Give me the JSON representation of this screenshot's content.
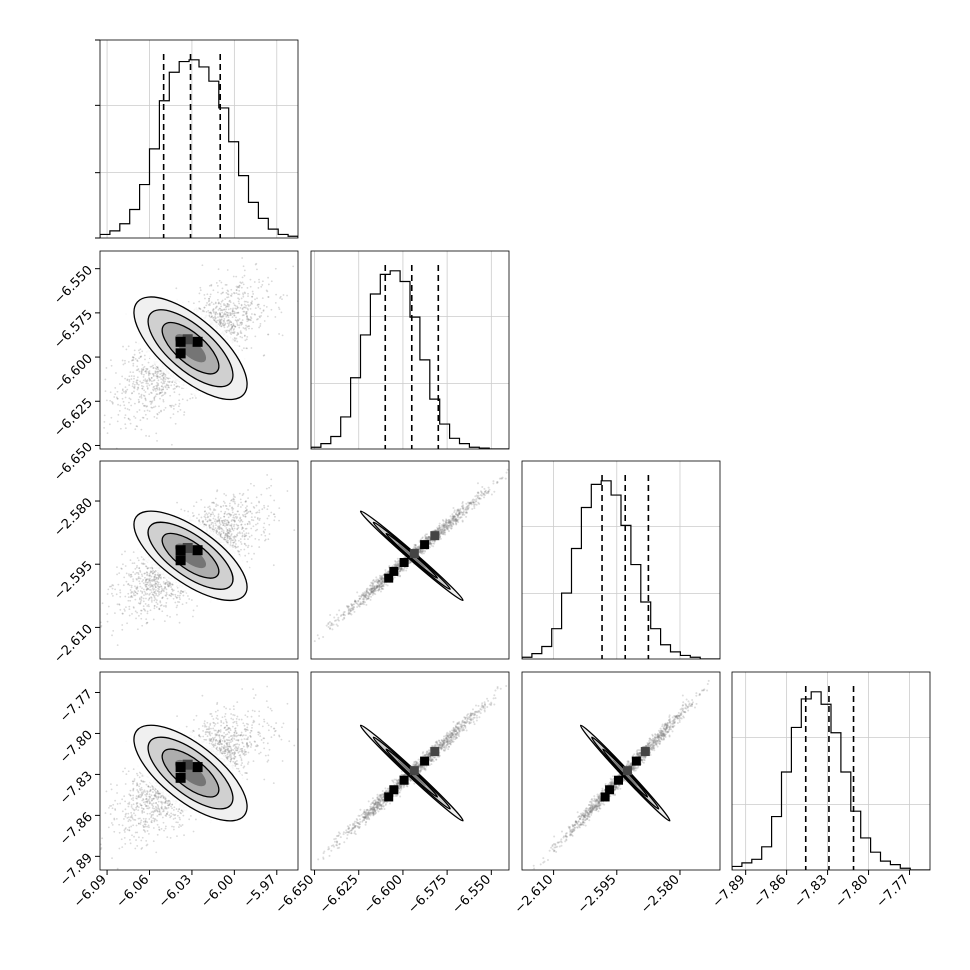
{
  "chart_data": {
    "type": "corner",
    "parameters": [
      {
        "ticks": [
          -6.09,
          -6.06,
          -6.03,
          -6.0,
          -5.97
        ],
        "tick_labels": [
          "−6.09",
          "−6.06",
          "−6.03",
          "−6.00",
          "−5.97"
        ],
        "range": [
          -6.095,
          -5.955
        ],
        "quantiles": [
          -6.05,
          -6.031,
          -6.01
        ],
        "mean": -6.031,
        "sd": 0.02
      },
      {
        "ticks": [
          -6.65,
          -6.625,
          -6.6,
          -6.575,
          -6.55
        ],
        "tick_labels": [
          "−6.650",
          "−6.625",
          "−6.600",
          "−6.575",
          "−6.550"
        ],
        "range": [
          -6.652,
          -6.54
        ],
        "quantiles": [
          -6.61,
          -6.595,
          -6.58
        ],
        "mean": -6.595,
        "sd": 0.0145
      },
      {
        "ticks": [
          -2.61,
          -2.595,
          -2.58
        ],
        "tick_labels": [
          "−2.610",
          "−2.595",
          "−2.580"
        ],
        "range": [
          -2.6175,
          -2.5705
        ],
        "quantiles": [
          -2.5985,
          -2.593,
          -2.5875
        ],
        "mean": -2.593,
        "sd": 0.0053
      },
      {
        "ticks": [
          -7.89,
          -7.86,
          -7.83,
          -7.8,
          -7.77
        ],
        "tick_labels": [
          "−7.89",
          "−7.86",
          "−7.83",
          "−7.80",
          "−7.77"
        ],
        "range": [
          -7.9,
          -7.755
        ],
        "quantiles": [
          -7.846,
          -7.829,
          -7.811
        ],
        "mean": -7.829,
        "sd": 0.0175
      }
    ],
    "histograms": [
      [
        0.02,
        0.04,
        0.08,
        0.16,
        0.3,
        0.5,
        0.77,
        0.93,
        0.99,
        1.0,
        0.96,
        0.88,
        0.73,
        0.54,
        0.35,
        0.2,
        0.11,
        0.05,
        0.02,
        0.01
      ],
      [
        0.01,
        0.03,
        0.07,
        0.18,
        0.4,
        0.64,
        0.87,
        0.98,
        1.0,
        0.94,
        0.74,
        0.5,
        0.28,
        0.14,
        0.06,
        0.03,
        0.01,
        0.005,
        0.0,
        0.0
      ],
      [
        0.01,
        0.03,
        0.07,
        0.17,
        0.37,
        0.62,
        0.85,
        0.98,
        1.0,
        0.92,
        0.75,
        0.53,
        0.32,
        0.17,
        0.08,
        0.04,
        0.02,
        0.01,
        0.0,
        0.0
      ],
      [
        0.02,
        0.04,
        0.06,
        0.13,
        0.3,
        0.55,
        0.8,
        0.96,
        1.0,
        0.93,
        0.77,
        0.55,
        0.33,
        0.18,
        0.1,
        0.05,
        0.03,
        0.01,
        0.0,
        0.0
      ]
    ],
    "correlations": {
      "1-0": 0.7,
      "2-0": 0.7,
      "3-0": 0.7,
      "2-1": 0.993,
      "3-1": 0.993,
      "3-2": 0.993
    },
    "grid": true
  }
}
